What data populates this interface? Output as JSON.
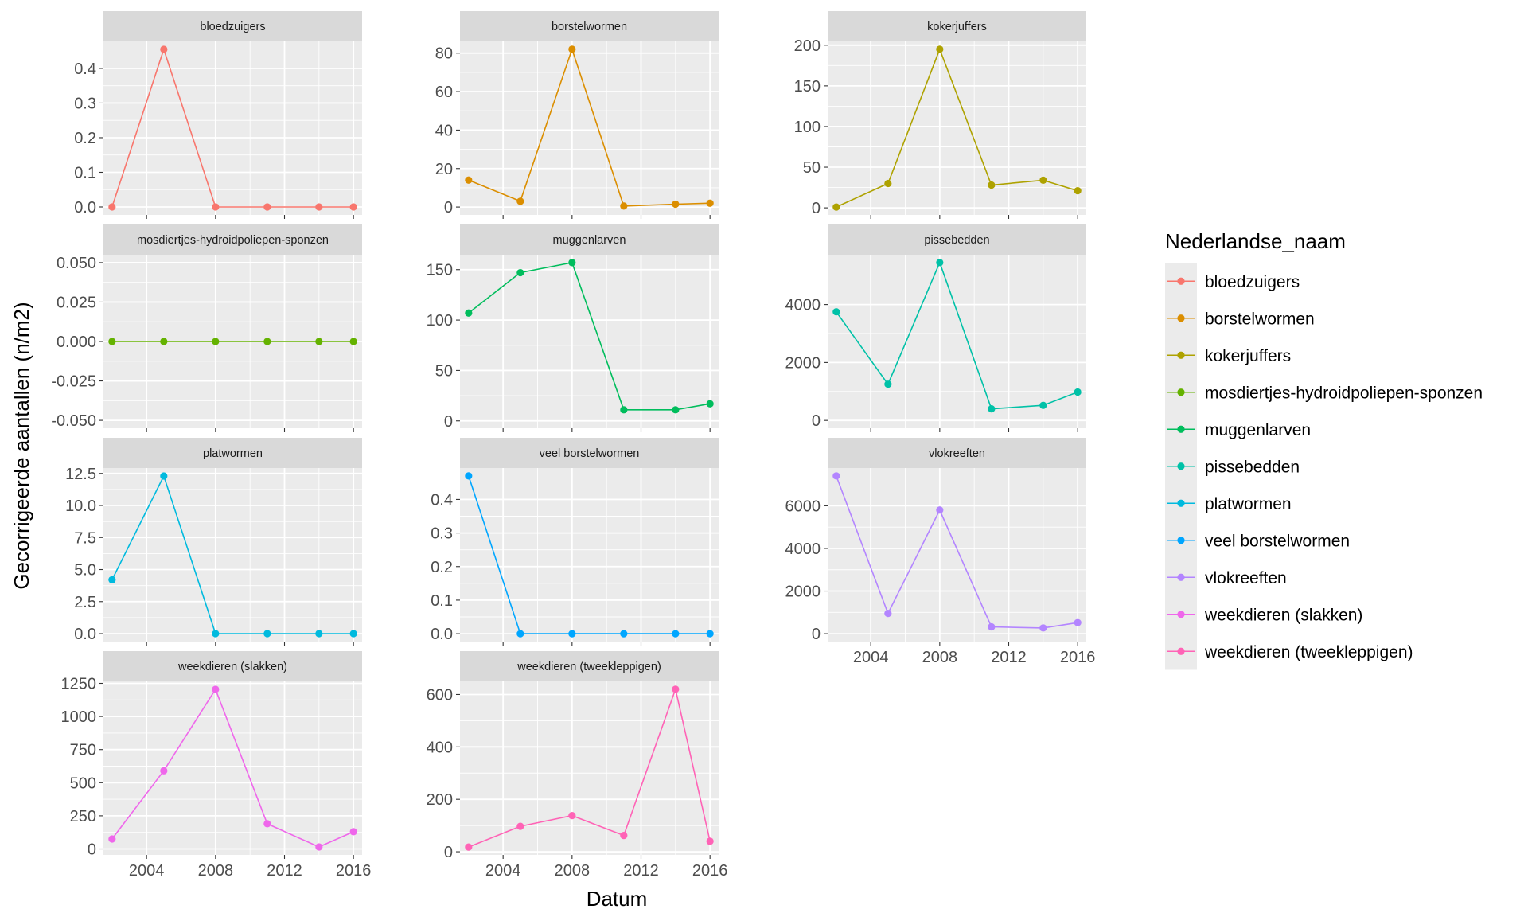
{
  "chart_data": {
    "type": "line",
    "layout": "facet_wrap",
    "xlabel": "Datum",
    "ylabel": "Gecorrigeerde aantallen (n/m2)",
    "legend": {
      "title": "Nederlandse_naam",
      "position": "right"
    },
    "x_tick_labels": [
      "2004",
      "2008",
      "2012",
      "2016"
    ],
    "x_range": [
      2001.5,
      2016.5
    ],
    "grid": true,
    "facets": [
      {
        "name": "bloedzuigers",
        "color": "#F8766D",
        "x": [
          2002,
          2005,
          2008,
          2011,
          2014,
          2016
        ],
        "y": [
          0,
          0.455,
          0,
          0,
          0,
          0
        ],
        "yticks": [
          0.0,
          0.1,
          0.2,
          0.3,
          0.4
        ],
        "ytick_labels": [
          "0.0",
          "0.1",
          "0.2",
          "0.3",
          "0.4"
        ],
        "ylim": [
          -0.023,
          0.478
        ]
      },
      {
        "name": "borstelwormen",
        "color": "#DB8E00",
        "x": [
          2002,
          2005,
          2008,
          2011,
          2014,
          2016
        ],
        "y": [
          14,
          3,
          82,
          0.5,
          1.5,
          2
        ],
        "yticks": [
          0,
          20,
          40,
          60,
          80
        ],
        "ytick_labels": [
          "0",
          "20",
          "40",
          "60",
          "80"
        ],
        "ylim": [
          -4.1,
          86.1
        ]
      },
      {
        "name": "kokerjuffers",
        "color": "#AEA200",
        "x": [
          2002,
          2005,
          2008,
          2011,
          2014,
          2016
        ],
        "y": [
          1,
          30,
          195,
          28,
          34,
          21
        ],
        "yticks": [
          0,
          50,
          100,
          150,
          200
        ],
        "ytick_labels": [
          "0",
          "50",
          "100",
          "150",
          "200"
        ],
        "ylim": [
          -8.7,
          204.7
        ]
      },
      {
        "name": "mosdiertjes-hydroidpoliepen-sponzen",
        "color": "#64B200",
        "x": [
          2002,
          2005,
          2008,
          2011,
          2014,
          2016
        ],
        "y": [
          0,
          0,
          0,
          0,
          0,
          0
        ],
        "yticks": [
          -0.05,
          -0.025,
          0,
          0.025,
          0.05
        ],
        "ytick_labels": [
          "-0.050",
          "-0.025",
          "0.000",
          "0.025",
          "0.050"
        ],
        "ylim": [
          -0.055,
          0.055
        ]
      },
      {
        "name": "muggenlarven",
        "color": "#00BD5C",
        "x": [
          2002,
          2005,
          2008,
          2011,
          2014,
          2016
        ],
        "y": [
          107,
          147,
          157,
          11,
          11,
          17
        ],
        "yticks": [
          0,
          50,
          100,
          150
        ],
        "ytick_labels": [
          "0",
          "50",
          "100",
          "150"
        ],
        "ylim": [
          -7.3,
          164.8
        ]
      },
      {
        "name": "pissebedden",
        "color": "#00C1A7",
        "x": [
          2002,
          2005,
          2008,
          2011,
          2014,
          2016
        ],
        "y": [
          3750,
          1250,
          5450,
          400,
          520,
          980
        ],
        "yticks": [
          0,
          2000,
          4000
        ],
        "ytick_labels": [
          "0",
          "2000",
          "4000"
        ],
        "ylim": [
          -270,
          5720
        ]
      },
      {
        "name": "platwormen",
        "color": "#00BADE",
        "x": [
          2002,
          2005,
          2008,
          2011,
          2014,
          2016
        ],
        "y": [
          4.2,
          12.3,
          0,
          0,
          0,
          0
        ],
        "yticks": [
          0,
          2.5,
          5,
          7.5,
          10,
          12.5
        ],
        "ytick_labels": [
          "0.0",
          "2.5",
          "5.0",
          "7.5",
          "10.0",
          "12.5"
        ],
        "ylim": [
          -0.62,
          12.92
        ]
      },
      {
        "name": "veel borstelwormen",
        "color": "#00A6FF",
        "x": [
          2002,
          2005,
          2008,
          2011,
          2014,
          2016
        ],
        "y": [
          0.47,
          0,
          0,
          0,
          0,
          0
        ],
        "yticks": [
          0,
          0.1,
          0.2,
          0.3,
          0.4
        ],
        "ytick_labels": [
          "0.0",
          "0.1",
          "0.2",
          "0.3",
          "0.4"
        ],
        "ylim": [
          -0.0235,
          0.4935
        ]
      },
      {
        "name": "vlokreeften",
        "color": "#B385FF",
        "x": [
          2002,
          2005,
          2008,
          2011,
          2014,
          2016
        ],
        "y": [
          7400,
          950,
          5800,
          320,
          270,
          520
        ],
        "yticks": [
          0,
          2000,
          4000,
          6000
        ],
        "ytick_labels": [
          "0",
          "2000",
          "4000",
          "6000"
        ],
        "ylim": [
          -370,
          7770
        ]
      },
      {
        "name": "weekdieren (slakken)",
        "color": "#EF67EB",
        "x": [
          2002,
          2005,
          2008,
          2011,
          2014,
          2016
        ],
        "y": [
          75,
          590,
          1205,
          190,
          15,
          130
        ],
        "yticks": [
          0,
          250,
          500,
          750,
          1000,
          1250
        ],
        "ytick_labels": [
          "0",
          "250",
          "500",
          "750",
          "1000",
          "1250"
        ],
        "ylim": [
          -45,
          1265
        ]
      },
      {
        "name": "weekdieren (tweekleppigen)",
        "color": "#FF63B6",
        "x": [
          2002,
          2005,
          2008,
          2011,
          2014,
          2016
        ],
        "y": [
          18,
          97,
          138,
          62,
          620,
          40
        ],
        "yticks": [
          0,
          200,
          400,
          600
        ],
        "ytick_labels": [
          "0",
          "200",
          "400",
          "600"
        ],
        "ylim": [
          -12,
          650
        ]
      }
    ]
  }
}
